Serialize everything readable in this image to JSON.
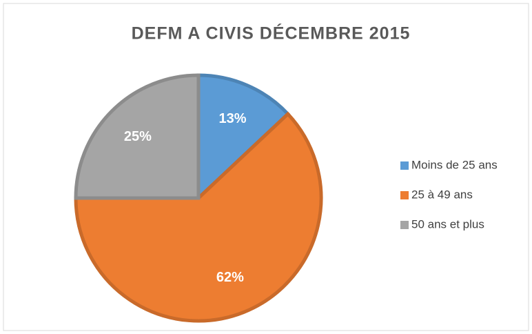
{
  "chart_data": {
    "type": "pie",
    "title": "DEFM A CIVIS DÉCEMBRE 2015",
    "categories": [
      "Moins de 25 ans",
      "25 à 49 ans",
      "50 ans et plus"
    ],
    "values": [
      13,
      62,
      25
    ],
    "value_labels": [
      "13%",
      "62%",
      "25%"
    ],
    "colors": [
      "#5b9bd5",
      "#ed7d31",
      "#a5a5a5"
    ],
    "legend": "right"
  }
}
